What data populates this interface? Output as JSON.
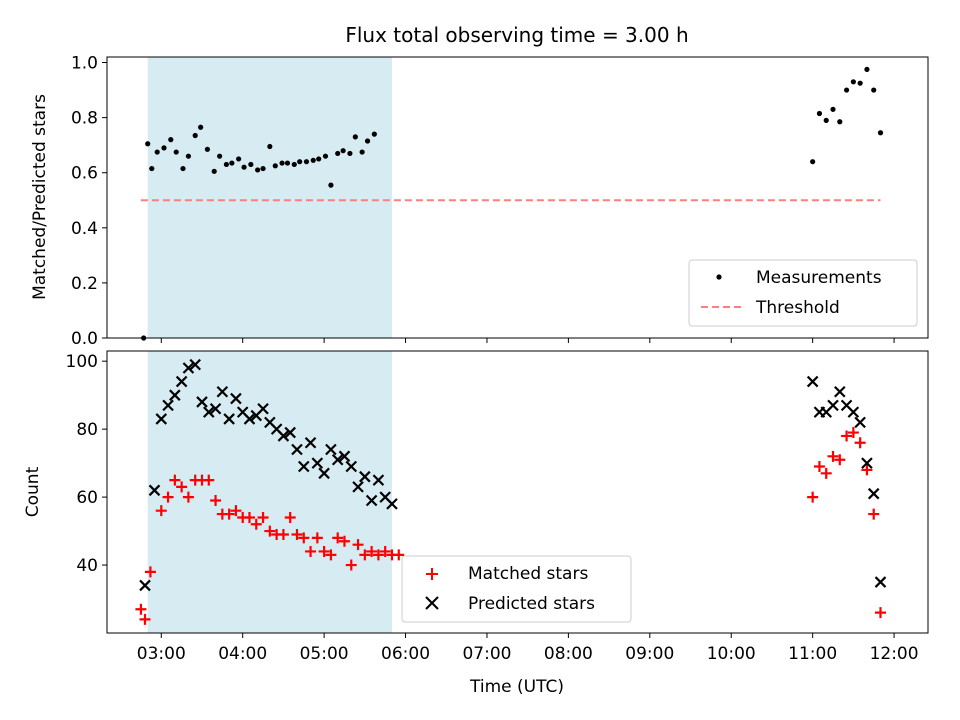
{
  "title": "Flux total observing time = 3.00 h",
  "chart_data": [
    {
      "type": "scatter",
      "panel": "top",
      "ylabel": "Matched/Predicted stars",
      "xlim": [
        "02:20",
        "12:25"
      ],
      "ylim": [
        0,
        1.02
      ],
      "yticks": [
        0.0,
        0.2,
        0.4,
        0.6,
        0.8,
        1.0
      ],
      "ytick_labels": [
        "0.0",
        "0.2",
        "0.4",
        "0.6",
        "0.8",
        "1.0"
      ],
      "shaded_interval": [
        "02:50",
        "05:50"
      ],
      "shade_color": "#add8e6",
      "legend_position": "lower right",
      "series": [
        {
          "name": "Measurements",
          "marker": "dot",
          "color": "#000000",
          "points": [
            [
              "02:47",
              0.0
            ],
            [
              "02:50",
              0.705
            ],
            [
              "02:53",
              0.615
            ],
            [
              "02:57",
              0.675
            ],
            [
              "03:02",
              0.69
            ],
            [
              "03:07",
              0.72
            ],
            [
              "03:11",
              0.675
            ],
            [
              "03:16",
              0.615
            ],
            [
              "03:20",
              0.66
            ],
            [
              "03:25",
              0.735
            ],
            [
              "03:29",
              0.765
            ],
            [
              "03:34",
              0.685
            ],
            [
              "03:39",
              0.605
            ],
            [
              "03:43",
              0.66
            ],
            [
              "03:48",
              0.63
            ],
            [
              "03:52",
              0.635
            ],
            [
              "03:57",
              0.65
            ],
            [
              "04:01",
              0.62
            ],
            [
              "04:06",
              0.63
            ],
            [
              "04:11",
              0.61
            ],
            [
              "04:15",
              0.615
            ],
            [
              "04:20",
              0.695
            ],
            [
              "04:24",
              0.625
            ],
            [
              "04:29",
              0.635
            ],
            [
              "04:33",
              0.635
            ],
            [
              "04:38",
              0.63
            ],
            [
              "04:42",
              0.64
            ],
            [
              "04:47",
              0.64
            ],
            [
              "04:52",
              0.645
            ],
            [
              "04:56",
              0.65
            ],
            [
              "05:01",
              0.66
            ],
            [
              "05:05",
              0.555
            ],
            [
              "05:10",
              0.67
            ],
            [
              "05:14",
              0.68
            ],
            [
              "05:19",
              0.67
            ],
            [
              "05:23",
              0.73
            ],
            [
              "05:28",
              0.675
            ],
            [
              "05:32",
              0.715
            ],
            [
              "05:37",
              0.74
            ],
            [
              "11:00",
              0.64
            ],
            [
              "11:05",
              0.815
            ],
            [
              "11:10",
              0.79
            ],
            [
              "11:15",
              0.83
            ],
            [
              "11:20",
              0.785
            ],
            [
              "11:25",
              0.9
            ],
            [
              "11:30",
              0.93
            ],
            [
              "11:35",
              0.925
            ],
            [
              "11:40",
              0.975
            ],
            [
              "11:45",
              0.9
            ],
            [
              "11:50",
              0.745
            ]
          ]
        },
        {
          "name": "Threshold",
          "marker": "dashed-line",
          "color": "#ff7f7f",
          "points": [
            [
              "02:45",
              0.5
            ],
            [
              "11:50",
              0.5
            ]
          ]
        }
      ]
    },
    {
      "type": "scatter",
      "panel": "bottom",
      "xlabel": "Time (UTC)",
      "ylabel": "Count",
      "xlim": [
        "02:20",
        "12:25"
      ],
      "ylim": [
        20,
        103
      ],
      "yticks": [
        40,
        60,
        80,
        100
      ],
      "ytick_labels": [
        "40",
        "60",
        "80",
        "100"
      ],
      "xticks": [
        "03:00",
        "04:00",
        "05:00",
        "06:00",
        "07:00",
        "08:00",
        "09:00",
        "10:00",
        "11:00",
        "12:00"
      ],
      "shaded_interval": [
        "02:50",
        "05:50"
      ],
      "shade_color": "#add8e6",
      "legend_position": "lower center",
      "series": [
        {
          "name": "Matched stars",
          "marker": "plus",
          "color": "#ff0000",
          "points": [
            [
              "02:45",
              27
            ],
            [
              "02:48",
              24
            ],
            [
              "02:52",
              38
            ],
            [
              "03:00",
              56
            ],
            [
              "03:05",
              60
            ],
            [
              "03:10",
              65
            ],
            [
              "03:15",
              63
            ],
            [
              "03:20",
              60
            ],
            [
              "03:25",
              65
            ],
            [
              "03:30",
              65
            ],
            [
              "03:35",
              65
            ],
            [
              "03:40",
              59
            ],
            [
              "03:45",
              55
            ],
            [
              "03:50",
              55
            ],
            [
              "03:55",
              56
            ],
            [
              "04:00",
              54
            ],
            [
              "04:05",
              54
            ],
            [
              "04:10",
              52
            ],
            [
              "04:15",
              54
            ],
            [
              "04:20",
              50
            ],
            [
              "04:25",
              49
            ],
            [
              "04:30",
              49
            ],
            [
              "04:35",
              54
            ],
            [
              "04:40",
              49
            ],
            [
              "04:45",
              48
            ],
            [
              "04:50",
              44
            ],
            [
              "04:55",
              48
            ],
            [
              "05:00",
              44
            ],
            [
              "05:05",
              43
            ],
            [
              "05:10",
              48
            ],
            [
              "05:15",
              47
            ],
            [
              "05:20",
              40
            ],
            [
              "05:25",
              46
            ],
            [
              "05:30",
              43
            ],
            [
              "05:35",
              44
            ],
            [
              "05:40",
              43
            ],
            [
              "05:45",
              44
            ],
            [
              "05:50",
              43
            ],
            [
              "05:55",
              43
            ],
            [
              "11:00",
              60
            ],
            [
              "11:05",
              69
            ],
            [
              "11:10",
              67
            ],
            [
              "11:15",
              72
            ],
            [
              "11:20",
              71
            ],
            [
              "11:25",
              78
            ],
            [
              "11:30",
              79
            ],
            [
              "11:35",
              76
            ],
            [
              "11:40",
              68
            ],
            [
              "11:45",
              55
            ],
            [
              "11:50",
              26
            ]
          ]
        },
        {
          "name": "Predicted stars",
          "marker": "x",
          "color": "#000000",
          "points": [
            [
              "02:48",
              34
            ],
            [
              "02:55",
              62
            ],
            [
              "03:00",
              83
            ],
            [
              "03:05",
              87
            ],
            [
              "03:10",
              90
            ],
            [
              "03:15",
              94
            ],
            [
              "03:20",
              98
            ],
            [
              "03:25",
              99
            ],
            [
              "03:30",
              88
            ],
            [
              "03:35",
              85
            ],
            [
              "03:40",
              86
            ],
            [
              "03:45",
              91
            ],
            [
              "03:50",
              83
            ],
            [
              "03:55",
              89
            ],
            [
              "04:00",
              85
            ],
            [
              "04:05",
              83
            ],
            [
              "04:10",
              84
            ],
            [
              "04:15",
              86
            ],
            [
              "04:20",
              82
            ],
            [
              "04:25",
              80
            ],
            [
              "04:30",
              78
            ],
            [
              "04:35",
              79
            ],
            [
              "04:40",
              74
            ],
            [
              "04:45",
              69
            ],
            [
              "04:50",
              76
            ],
            [
              "04:55",
              70
            ],
            [
              "05:00",
              67
            ],
            [
              "05:05",
              74
            ],
            [
              "05:10",
              71
            ],
            [
              "05:15",
              72
            ],
            [
              "05:20",
              69
            ],
            [
              "05:25",
              63
            ],
            [
              "05:30",
              66
            ],
            [
              "05:35",
              59
            ],
            [
              "05:40",
              65
            ],
            [
              "05:45",
              60
            ],
            [
              "05:50",
              58
            ],
            [
              "11:00",
              94
            ],
            [
              "11:05",
              85
            ],
            [
              "11:10",
              85
            ],
            [
              "11:15",
              87
            ],
            [
              "11:20",
              91
            ],
            [
              "11:25",
              87
            ],
            [
              "11:30",
              85
            ],
            [
              "11:35",
              82
            ],
            [
              "11:40",
              70
            ],
            [
              "11:45",
              61
            ],
            [
              "11:50",
              35
            ]
          ]
        }
      ]
    }
  ]
}
